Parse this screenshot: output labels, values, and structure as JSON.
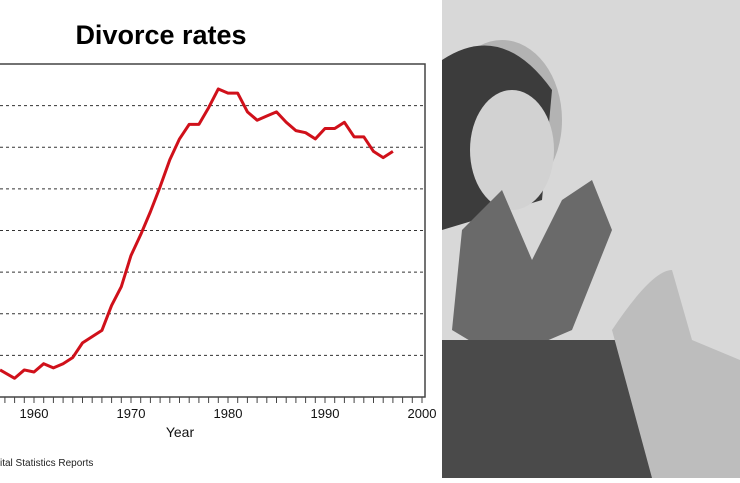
{
  "chart_data": {
    "type": "line",
    "title": "Divorce rates",
    "xlabel": "Year",
    "ylabel": "",
    "x_ticks": [
      "1960",
      "1970",
      "1980",
      "1990",
      "2000"
    ],
    "xlim": [
      1956.5,
      2000.5
    ],
    "ylim": [
      8,
      24
    ],
    "grid": "horizontal dashed",
    "series": [
      {
        "name": "Divorce rate",
        "color": "#d0101a",
        "x": [
          1956.5,
          1958,
          1959,
          1960,
          1961,
          1962,
          1963,
          1964,
          1965,
          1966,
          1967,
          1968,
          1969,
          1970,
          1971,
          1972,
          1973,
          1974,
          1975,
          1976,
          1977,
          1978,
          1979,
          1980,
          1981,
          1982,
          1983,
          1984,
          1985,
          1986,
          1987,
          1988,
          1989,
          1990,
          1991,
          1992,
          1993,
          1994,
          1995,
          1996,
          1997
        ],
        "y": [
          9.3,
          8.9,
          9.3,
          9.2,
          9.6,
          9.4,
          9.6,
          9.9,
          10.6,
          10.9,
          11.2,
          12.4,
          13.3,
          14.8,
          15.8,
          16.9,
          18.1,
          19.4,
          20.4,
          21.1,
          21.1,
          21.9,
          22.8,
          22.6,
          22.6,
          21.7,
          21.3,
          21.5,
          21.7,
          21.2,
          20.8,
          20.7,
          20.4,
          20.9,
          20.9,
          21.2,
          20.5,
          20.5,
          19.8,
          19.5,
          19.8
        ]
      }
    ],
    "source": "ital Statistics Reports"
  },
  "photo": {
    "description_icon": "photo-woman-hands"
  }
}
